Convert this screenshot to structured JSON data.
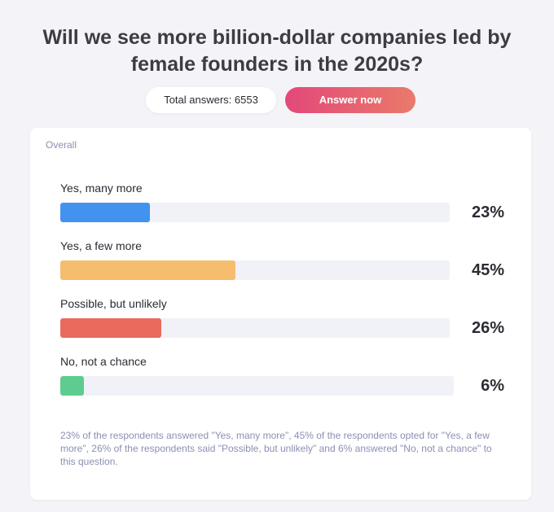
{
  "header": {
    "title": "Will we see more billion-dollar companies led by female founders in the 2020s?",
    "total_answers": "Total answers: 6553",
    "answer_button": "Answer now"
  },
  "card": {
    "section_label": "Overall",
    "summary": "23% of the respondents answered \"Yes, many more\", 45% of the respondents opted for \"Yes, a few more\", 26% of the respondents said \"Possible, but unlikely\" and 6% answered \"No, not a chance\" to this question."
  },
  "colors": {
    "accent_start": "#e3487a",
    "accent_end": "#ea7a6a",
    "track": "#f1f1f8"
  },
  "chart_data": {
    "type": "bar",
    "orientation": "horizontal",
    "title": "Overall",
    "categories": [
      "Yes, many more",
      "Yes, a few more",
      "Possible, but unlikely",
      "No, not a chance"
    ],
    "values": [
      23,
      45,
      26,
      6
    ],
    "value_labels": [
      "23%",
      "45%",
      "26%",
      "6%"
    ],
    "colors": [
      "#4293f0",
      "#f6bd6e",
      "#ea6a5d",
      "#5fcc8f"
    ],
    "unit": "%",
    "xlim": [
      0,
      100
    ],
    "grid": false
  }
}
